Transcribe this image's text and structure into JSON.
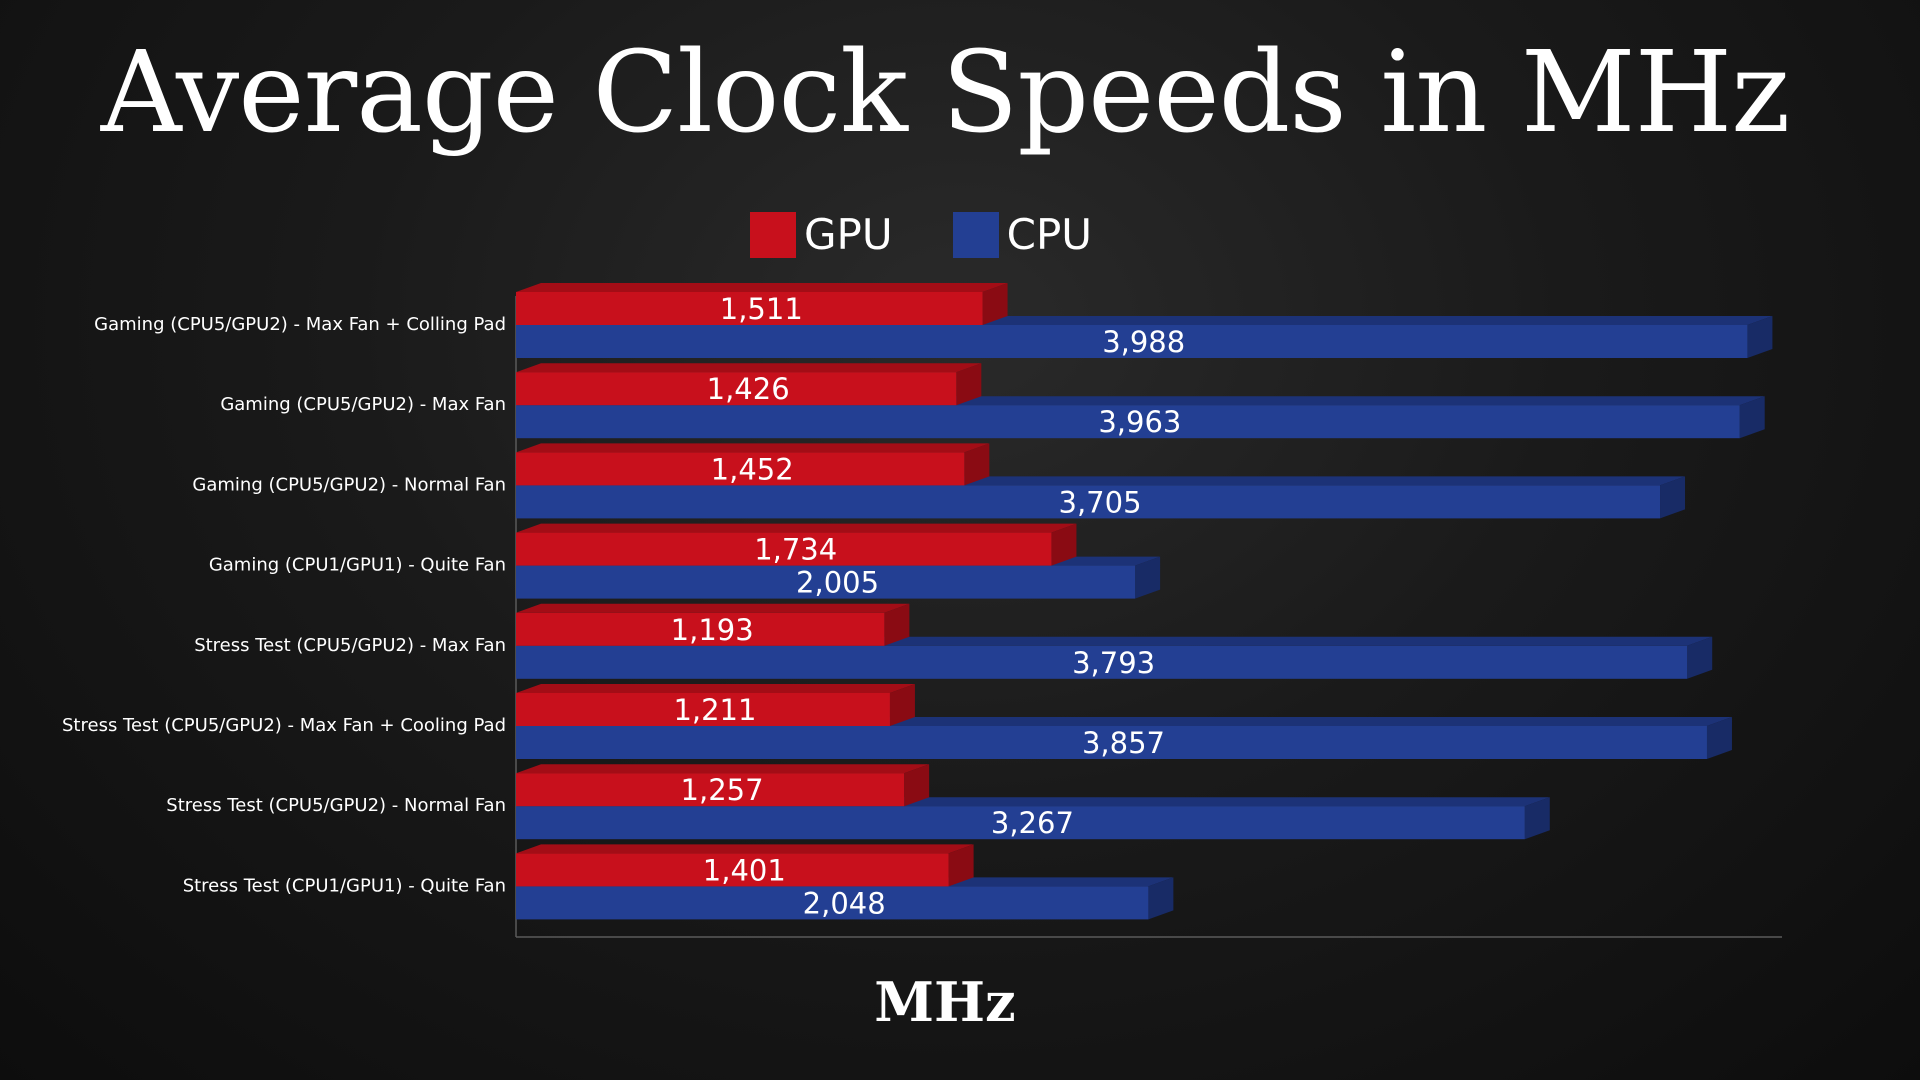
{
  "chart_data": {
    "type": "bar",
    "orientation": "horizontal",
    "style": "3d",
    "title": "Average Clock Speeds in MHz",
    "xlabel": "MHz",
    "ylabel": "",
    "xlim": [
      0,
      4100
    ],
    "grid": false,
    "legend_position": "top-center",
    "categories": [
      "Gaming (CPU5/GPU2) - Max Fan + Colling Pad",
      "Gaming (CPU5/GPU2) - Max Fan",
      "Gaming (CPU5/GPU2) - Normal Fan",
      "Gaming (CPU1/GPU1) - Quite Fan",
      "Stress Test (CPU5/GPU2) - Max Fan",
      "Stress Test (CPU5/GPU2) - Max Fan + Cooling Pad",
      "Stress Test (CPU5/GPU2) - Normal Fan",
      "Stress Test (CPU1/GPU1) - Quite Fan"
    ],
    "series": [
      {
        "name": "GPU",
        "color": "#c8101c",
        "top_color": "#a30d16",
        "side_color": "#8a0b13",
        "values": [
          1511,
          1426,
          1452,
          1734,
          1193,
          1211,
          1257,
          1401
        ],
        "value_labels": [
          "1,511",
          "1,426",
          "1,452",
          "1,734",
          "1,193",
          "1,211",
          "1,257",
          "1,401"
        ]
      },
      {
        "name": "CPU",
        "color": "#233f93",
        "top_color": "#1c3277",
        "side_color": "#182b66",
        "values": [
          3988,
          3963,
          3705,
          2005,
          3793,
          3857,
          3267,
          2048
        ],
        "value_labels": [
          "3,988",
          "3,963",
          "3,705",
          "2,005",
          "3,793",
          "3,857",
          "3,267",
          "2,048"
        ]
      }
    ]
  }
}
